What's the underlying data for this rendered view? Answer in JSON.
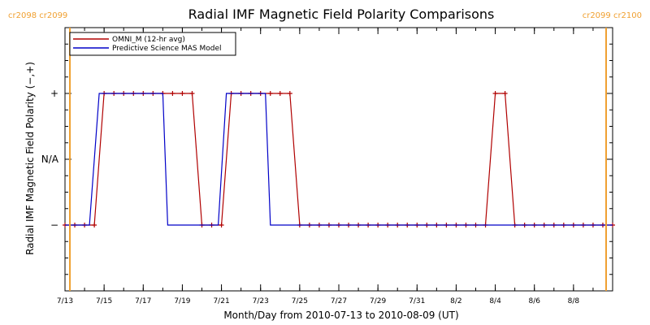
{
  "chart_data": {
    "type": "line",
    "title": "Radial IMF Magnetic Field Polarity Comparisons",
    "xlabel": "Month/Day from 2010-07-13 to 2010-08-09 (UT)",
    "ylabel": "Radial IMF Magnetic Field Polarity (−,+)",
    "xlim": [
      "2010-07-13",
      "2010-08-10"
    ],
    "ylim": [
      -2,
      2
    ],
    "x_ticks": [
      {
        "x": "2010-07-13",
        "label": "7/13"
      },
      {
        "x": "2010-07-15",
        "label": "7/15"
      },
      {
        "x": "2010-07-17",
        "label": "7/17"
      },
      {
        "x": "2010-07-19",
        "label": "7/19"
      },
      {
        "x": "2010-07-21",
        "label": "7/21"
      },
      {
        "x": "2010-07-23",
        "label": "7/23"
      },
      {
        "x": "2010-07-25",
        "label": "7/25"
      },
      {
        "x": "2010-07-27",
        "label": "7/27"
      },
      {
        "x": "2010-07-29",
        "label": "7/29"
      },
      {
        "x": "2010-07-31",
        "label": "7/31"
      },
      {
        "x": "2010-08-02",
        "label": "8/2"
      },
      {
        "x": "2010-08-04",
        "label": "8/4"
      },
      {
        "x": "2010-08-06",
        "label": "8/6"
      },
      {
        "x": "2010-08-08",
        "label": "8/8"
      }
    ],
    "y_ticks": [
      {
        "y": 1,
        "label": "+"
      },
      {
        "y": 0,
        "label": "N/A"
      },
      {
        "y": -1,
        "label": "−"
      }
    ],
    "carrington_markers": [
      {
        "x": "2010-07-13 06:00",
        "label": "cr2098 cr2099"
      },
      {
        "x": "2010-08-09 16:00",
        "label": "cr2099 cr2100"
      }
    ],
    "legend_position": "top-left",
    "grid": false,
    "series": [
      {
        "name": "OMNI_M (12-hr avg)",
        "color": "#b00000",
        "markers": true,
        "points": [
          [
            "2010-07-13 00:00",
            -1
          ],
          [
            "2010-07-13 12:00",
            -1
          ],
          [
            "2010-07-14 00:00",
            -1
          ],
          [
            "2010-07-14 12:00",
            -1
          ],
          [
            "2010-07-15 00:00",
            1
          ],
          [
            "2010-07-15 12:00",
            1
          ],
          [
            "2010-07-16 00:00",
            1
          ],
          [
            "2010-07-16 12:00",
            1
          ],
          [
            "2010-07-17 00:00",
            1
          ],
          [
            "2010-07-17 12:00",
            1
          ],
          [
            "2010-07-18 00:00",
            1
          ],
          [
            "2010-07-18 12:00",
            1
          ],
          [
            "2010-07-19 00:00",
            1
          ],
          [
            "2010-07-19 12:00",
            1
          ],
          [
            "2010-07-20 00:00",
            -1
          ],
          [
            "2010-07-20 12:00",
            -1
          ],
          [
            "2010-07-21 00:00",
            -1
          ],
          [
            "2010-07-21 12:00",
            1
          ],
          [
            "2010-07-22 00:00",
            1
          ],
          [
            "2010-07-22 12:00",
            1
          ],
          [
            "2010-07-23 00:00",
            1
          ],
          [
            "2010-07-23 12:00",
            1
          ],
          [
            "2010-07-24 00:00",
            1
          ],
          [
            "2010-07-24 12:00",
            1
          ],
          [
            "2010-07-25 00:00",
            -1
          ],
          [
            "2010-07-25 12:00",
            -1
          ],
          [
            "2010-07-26 00:00",
            -1
          ],
          [
            "2010-07-26 12:00",
            -1
          ],
          [
            "2010-07-27 00:00",
            -1
          ],
          [
            "2010-07-27 12:00",
            -1
          ],
          [
            "2010-07-28 00:00",
            -1
          ],
          [
            "2010-07-28 12:00",
            -1
          ],
          [
            "2010-07-29 00:00",
            -1
          ],
          [
            "2010-07-29 12:00",
            -1
          ],
          [
            "2010-07-30 00:00",
            -1
          ],
          [
            "2010-07-30 12:00",
            -1
          ],
          [
            "2010-07-31 00:00",
            -1
          ],
          [
            "2010-07-31 12:00",
            -1
          ],
          [
            "2010-08-01 00:00",
            -1
          ],
          [
            "2010-08-01 12:00",
            -1
          ],
          [
            "2010-08-02 00:00",
            -1
          ],
          [
            "2010-08-02 12:00",
            -1
          ],
          [
            "2010-08-03 00:00",
            -1
          ],
          [
            "2010-08-03 12:00",
            -1
          ],
          [
            "2010-08-04 00:00",
            1
          ],
          [
            "2010-08-04 12:00",
            1
          ],
          [
            "2010-08-05 00:00",
            -1
          ],
          [
            "2010-08-05 12:00",
            -1
          ],
          [
            "2010-08-06 00:00",
            -1
          ],
          [
            "2010-08-06 12:00",
            -1
          ],
          [
            "2010-08-07 00:00",
            -1
          ],
          [
            "2010-08-07 12:00",
            -1
          ],
          [
            "2010-08-08 00:00",
            -1
          ],
          [
            "2010-08-08 12:00",
            -1
          ],
          [
            "2010-08-09 00:00",
            -1
          ],
          [
            "2010-08-09 12:00",
            -1
          ],
          [
            "2010-08-10 00:00",
            -1
          ]
        ]
      },
      {
        "name": "Predictive Science MAS Model",
        "color": "#0000c8",
        "markers": false,
        "points": [
          [
            "2010-07-13 00:00",
            -1
          ],
          [
            "2010-07-14 06:00",
            -1
          ],
          [
            "2010-07-14 18:00",
            1
          ],
          [
            "2010-07-18 00:00",
            1
          ],
          [
            "2010-07-18 06:00",
            -1
          ],
          [
            "2010-07-20 20:00",
            -1
          ],
          [
            "2010-07-21 06:00",
            1
          ],
          [
            "2010-07-23 06:00",
            1
          ],
          [
            "2010-07-23 12:00",
            -1
          ],
          [
            "2010-08-10 00:00",
            -1
          ]
        ]
      }
    ]
  }
}
